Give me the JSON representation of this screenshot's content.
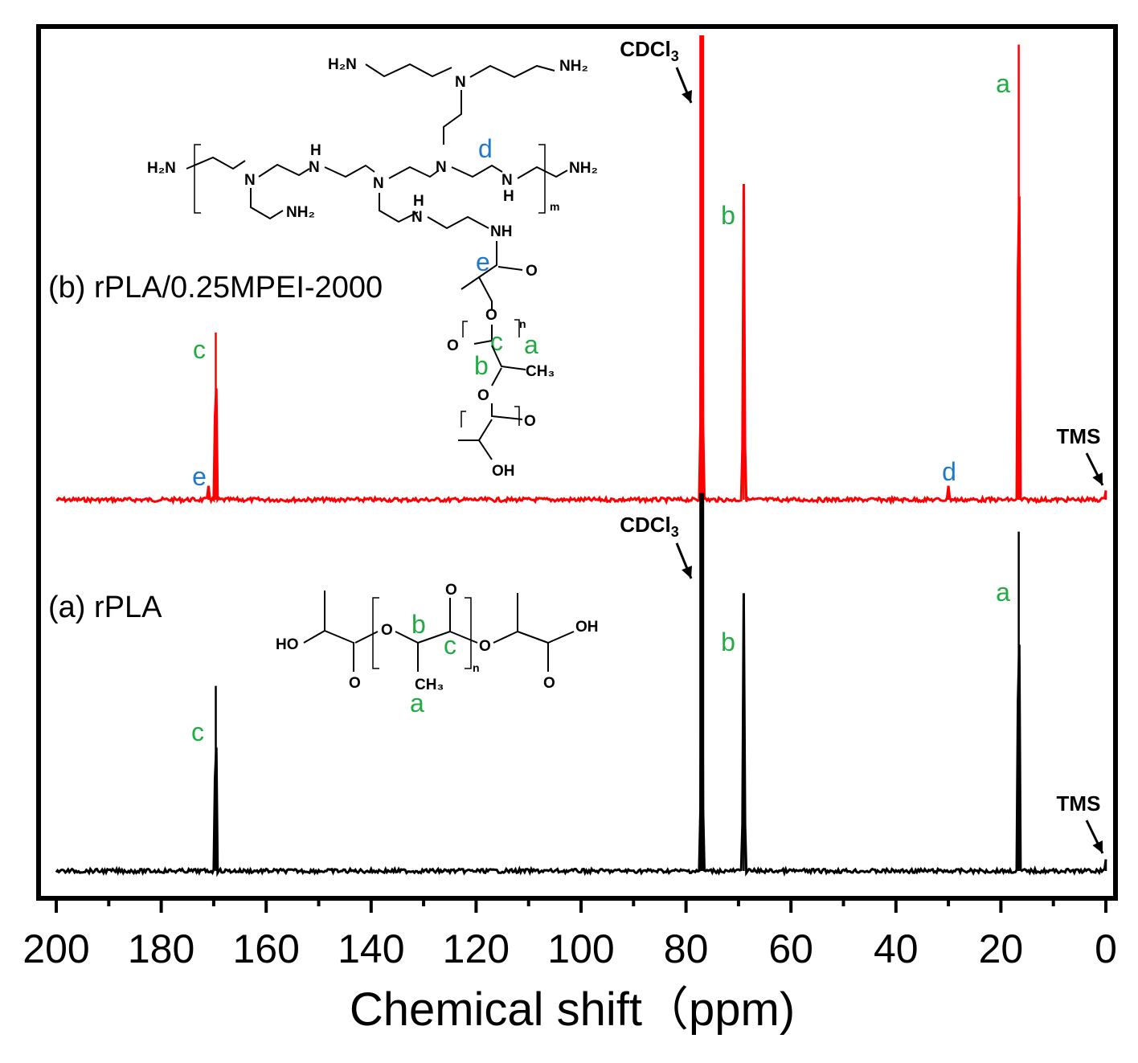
{
  "chart_data": {
    "type": "line",
    "xlabel": "Chemical shift（ppm)",
    "xlim": [
      200,
      0
    ],
    "x_reversed": true,
    "xticks": [
      "200",
      "180",
      "160",
      "140",
      "120",
      "100",
      "80",
      "60",
      "40",
      "20",
      "0"
    ],
    "grid": false,
    "legend": "none",
    "series": [
      {
        "label": "(b) rPLA/0.25MPEI-2000",
        "color": "#ff0000",
        "peaks": [
          {
            "x": 171.0,
            "height": 0.03,
            "letter": "e",
            "letter_color": "#1f78c8"
          },
          {
            "x": 169.6,
            "height": 0.36,
            "letter": "c",
            "letter_color": "#22aa44"
          },
          {
            "x": 77.0,
            "height": 1.0,
            "label": "CDCl3"
          },
          {
            "x": 69.0,
            "height": 0.68,
            "letter": "b",
            "letter_color": "#22aa44"
          },
          {
            "x": 30.0,
            "height": 0.03,
            "letter": "d",
            "letter_color": "#1f78c8"
          },
          {
            "x": 16.6,
            "height": 0.98,
            "letter": "a",
            "letter_color": "#22aa44"
          },
          {
            "x": 0.0,
            "height": 0.02,
            "label": "TMS"
          }
        ]
      },
      {
        "label": "(a) rPLA",
        "color": "#000000",
        "peaks": [
          {
            "x": 169.6,
            "height": 0.48,
            "letter": "c",
            "letter_color": "#22aa44"
          },
          {
            "x": 77.0,
            "height": 0.98,
            "label": "CDCl3"
          },
          {
            "x": 69.0,
            "height": 0.72,
            "letter": "b",
            "letter_color": "#22aa44"
          },
          {
            "x": 16.6,
            "height": 0.88,
            "letter": "a",
            "letter_color": "#22aa44"
          },
          {
            "x": 0.0,
            "height": 0.03,
            "label": "TMS"
          }
        ]
      }
    ]
  },
  "structure_b": {
    "h2n_top_left": "H₂N",
    "nh2_top_right": "NH₂",
    "h2n_left": "H₂N",
    "nh2_right": "NH₂",
    "nh2_pendant": "NH₂",
    "n": "N",
    "nh_h": "H",
    "nh_n": "N",
    "nh_amide": "NH",
    "o": "O",
    "oh": "OH",
    "ch3": "CH₃",
    "sub_m": "m",
    "sub_n": "n",
    "letter_d": "d",
    "letter_e": "e",
    "letter_c": "c",
    "letter_a": "a",
    "letter_b": "b"
  },
  "structure_a": {
    "ho": "HO",
    "oh": "OH",
    "o": "O",
    "ch3": "CH₃",
    "sub_n": "n",
    "letter_b": "b",
    "letter_c": "c",
    "letter_a": "a"
  },
  "colors": {
    "green": "#22aa44",
    "blue": "#1f78c8",
    "red": "#ff0000",
    "black": "#000000"
  }
}
